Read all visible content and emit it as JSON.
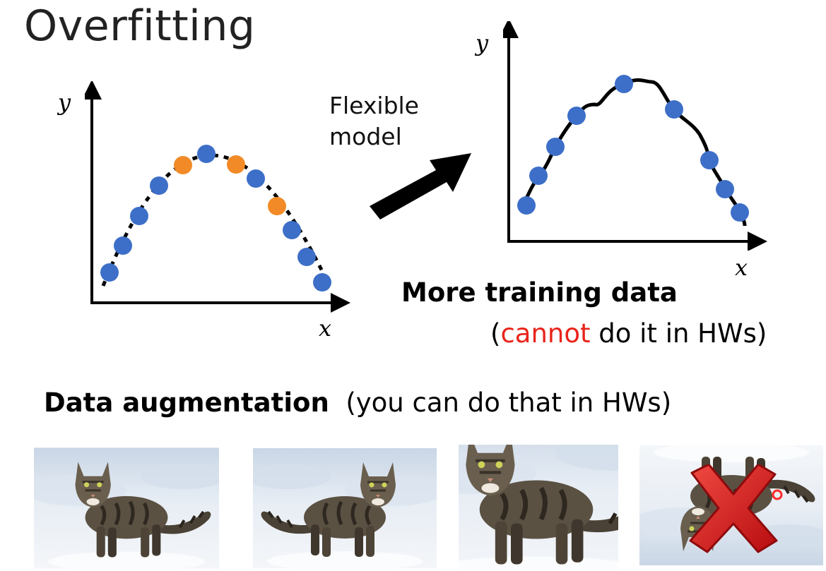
{
  "title": "Overfitting",
  "arrow_label": [
    "Flexible",
    "model"
  ],
  "left_plot": {
    "y_axis": "y",
    "x_axis": "x"
  },
  "right_plot": {
    "y_axis": "y",
    "x_axis": "x"
  },
  "more_data": {
    "heading": "More training data",
    "note_open": "(",
    "note_warning": "cannot",
    "note_rest": " do it in HWs)"
  },
  "augmentation": {
    "heading": "Data augmentation",
    "note": "(you can do that in HWs)",
    "images": [
      {
        "name": "original",
        "rejected": false
      },
      {
        "name": "flipped-horizontally",
        "rejected": false
      },
      {
        "name": "cropped-zoomed",
        "rejected": false
      },
      {
        "name": "flipped-upside-down",
        "rejected": true
      }
    ]
  },
  "colors": {
    "training_point": "#3d6fc8",
    "unseen_point": "#f28a27",
    "warning_text": "#e8241b",
    "reject_cross": "#e3171b"
  }
}
